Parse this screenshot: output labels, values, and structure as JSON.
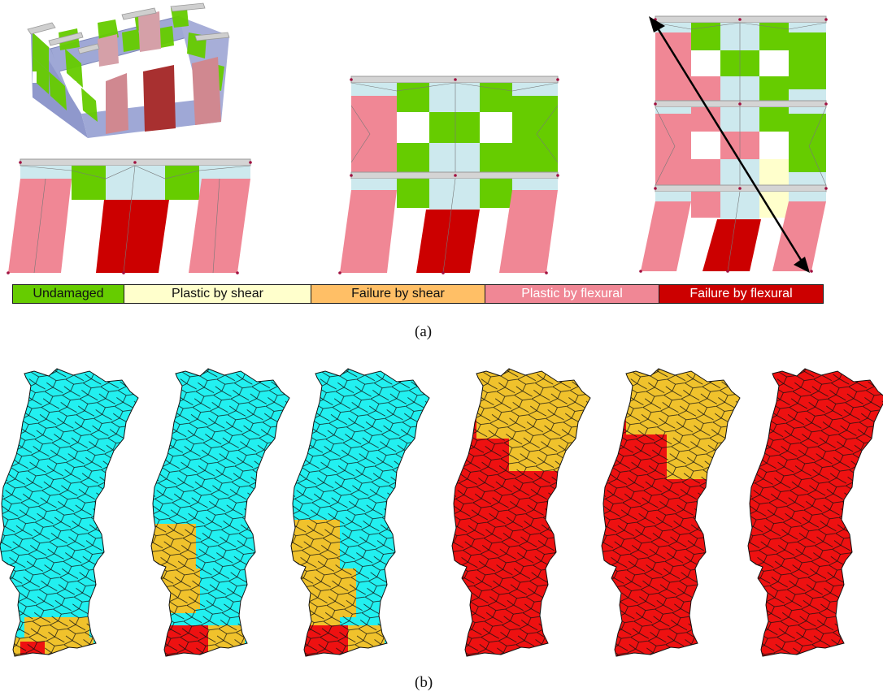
{
  "colors": {
    "undamaged": "#66cc00",
    "plastic_shear": "#ffffcc",
    "failure_shear": "#ffbf66",
    "plastic_flexural": "#f08795",
    "failure_flexural": "#cc0000",
    "lintel": "#cde9ee",
    "beam": "#d4d4d4",
    "map_low": "#22f0f0",
    "map_mid": "#f0c22c",
    "map_high": "#ee1111"
  },
  "legend": [
    {
      "key": "undamaged",
      "label": "Undamaged",
      "text_color": "#111111"
    },
    {
      "key": "plastic_shear",
      "label": "Plastic by shear",
      "text_color": "#111111"
    },
    {
      "key": "failure_shear",
      "label": "Failure by shear",
      "text_color": "#111111"
    },
    {
      "key": "plastic_flexural",
      "label": "Plastic by flexural",
      "text_color": "#ffffff"
    },
    {
      "key": "failure_flexural",
      "label": "Failure by flexural",
      "text_color": "#ffffff"
    }
  ],
  "captions": {
    "a": "(a)",
    "b": "(b)"
  },
  "maps": [
    {
      "name": "map-1",
      "base": "map_low",
      "zones": [
        "south_mid",
        "algarve_high"
      ]
    },
    {
      "name": "map-2",
      "base": "map_low",
      "zones": [
        "lisbon_mid",
        "algarve_mix"
      ]
    },
    {
      "name": "map-3",
      "base": "map_low",
      "zones": [
        "lisbon_mid_wide",
        "algarve_mix"
      ]
    },
    {
      "name": "map-4",
      "base": "map_high",
      "zones": [
        "north_mid"
      ]
    },
    {
      "name": "map-5",
      "base": "map_high",
      "zones": [
        "north_mid_wide"
      ]
    },
    {
      "name": "map-6",
      "base": "map_high",
      "zones": []
    }
  ]
}
